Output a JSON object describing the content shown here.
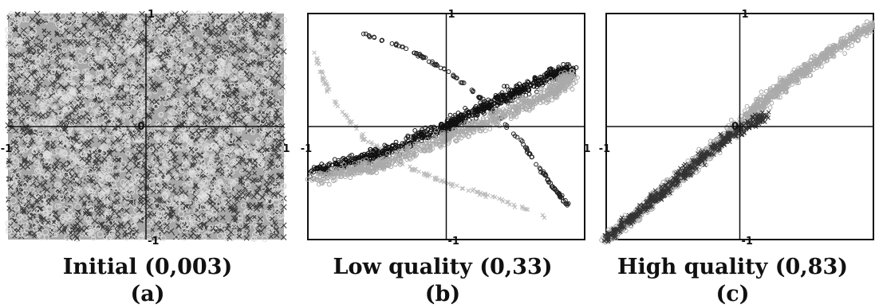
{
  "figure": {
    "panels": [
      {
        "caption": "Initial (0,003)",
        "letter": "(a)"
      },
      {
        "caption": "Low quality (0,33)",
        "letter": "(b)"
      },
      {
        "caption": "High quality (0,83)",
        "letter": "(c)"
      }
    ]
  },
  "chart_data": [
    {
      "type": "scatter",
      "title": "Initial (0,003)",
      "panel_label": "(a)",
      "xlim": [
        -1,
        1
      ],
      "ylim": [
        -1,
        1
      ],
      "ticks": {
        "left": "-1",
        "right": "1",
        "top": "1",
        "bottom": "-1",
        "origin": "0"
      },
      "frame": false,
      "background": "#a8a8a8",
      "grid": false,
      "description_of_series": "dense uniform noise cloud",
      "series": [
        {
          "marker": "x",
          "color": "#3a3a3a"
        },
        {
          "marker": "o",
          "color": "#dcdcdc"
        }
      ]
    },
    {
      "type": "scatter",
      "title": "Low quality (0,33)",
      "panel_label": "(b)",
      "xlim": [
        -1,
        1
      ],
      "ylim": [
        -1,
        1
      ],
      "ticks": {
        "left": "-1",
        "right": "1",
        "top": "1",
        "bottom": "-1",
        "origin": "0"
      },
      "frame": true,
      "background": "#ffffff",
      "grid": false,
      "series": [
        {
          "marker": "o",
          "color": "#222222",
          "x": [
            -0.6,
            -0.3,
            0.0,
            0.3,
            0.55,
            0.75,
            0.88
          ],
          "y": [
            0.82,
            0.7,
            0.5,
            0.2,
            -0.15,
            -0.5,
            -0.7
          ]
        },
        {
          "marker": "x",
          "color": "#bbbbbb",
          "x": [
            -0.95,
            -0.85,
            -0.6,
            -0.3,
            0.0,
            0.4,
            0.72
          ],
          "y": [
            0.65,
            0.3,
            -0.1,
            -0.35,
            -0.5,
            -0.65,
            -0.8
          ]
        },
        {
          "marker": "o",
          "color": "#111111",
          "x": [
            -0.95,
            -0.5,
            0.0,
            0.4,
            0.75,
            0.9
          ],
          "y": [
            -0.4,
            -0.25,
            0.0,
            0.25,
            0.45,
            0.5
          ]
        },
        {
          "marker": "o",
          "color": "#aaaaaa",
          "x": [
            -0.95,
            -0.5,
            0.0,
            0.4,
            0.75,
            0.9
          ],
          "y": [
            -0.45,
            -0.35,
            -0.1,
            0.1,
            0.3,
            0.45
          ]
        }
      ]
    },
    {
      "type": "scatter",
      "title": "High quality (0,83)",
      "panel_label": "(c)",
      "xlim": [
        -1,
        1
      ],
      "ylim": [
        -1,
        1
      ],
      "ticks": {
        "left": "-1",
        "right": "",
        "top": "1",
        "bottom": "-1",
        "origin": "0"
      },
      "frame": true,
      "background": "#ffffff",
      "grid": false,
      "series": [
        {
          "marker": "o",
          "color": "#aaaaaa",
          "x": [
            -1.0,
            -0.6,
            -0.2,
            0.2,
            0.6,
            1.0
          ],
          "y": [
            -1.0,
            -0.6,
            -0.2,
            0.25,
            0.6,
            0.9
          ]
        },
        {
          "marker": "x",
          "color": "#333333",
          "x": [
            -1.0,
            -0.7,
            -0.4,
            -0.1,
            0.2
          ],
          "y": [
            -1.0,
            -0.7,
            -0.4,
            -0.1,
            0.1
          ]
        }
      ]
    }
  ]
}
